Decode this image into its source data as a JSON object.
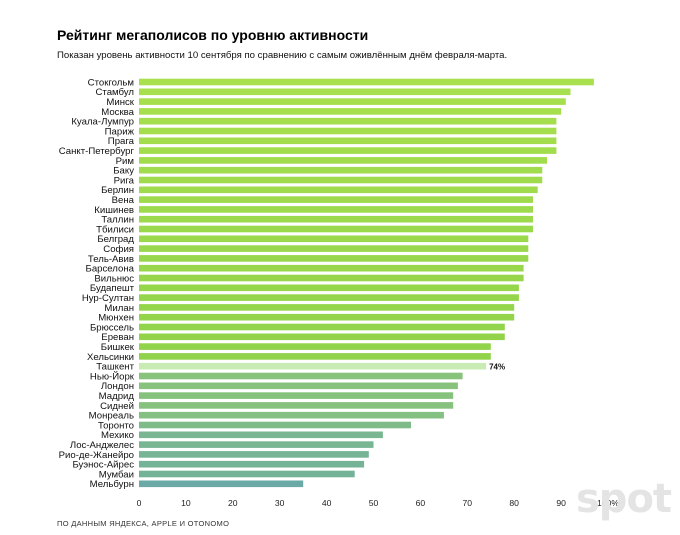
{
  "title": "Рейтинг мегаполисов по уровню активности",
  "subtitle": "Показан уровень активности 10 сентября по сравнению с самым оживлённым днём февраля-марта.",
  "source": "ПО ДАННЫМ ЯНДЕКСА, APPLE И OTONOMO",
  "watermark": "spot",
  "colors": {
    "green": "#a8e04e",
    "highlight": "#c9ecb5",
    "teal": "#6aa9a6"
  },
  "chart_data": {
    "type": "bar",
    "orientation": "horizontal",
    "title": "Рейтинг мегаполисов по уровню активности",
    "xlim": [
      0,
      100
    ],
    "ticks": [
      "0",
      "10",
      "20",
      "30",
      "40",
      "50",
      "60",
      "70",
      "80",
      "90",
      "100%"
    ],
    "highlight": {
      "category": "Ташкент",
      "label": "74%"
    },
    "categories": [
      "Стокгольм",
      "Стамбул",
      "Минск",
      "Москва",
      "Куала-Лумпур",
      "Париж",
      "Прага",
      "Санкт-Петербург",
      "Рим",
      "Баку",
      "Рига",
      "Берлин",
      "Вена",
      "Кишинев",
      "Таллин",
      "Тбилиси",
      "Белград",
      "София",
      "Тель-Авив",
      "Барселона",
      "Вильнюс",
      "Будапешт",
      "Нур-Султан",
      "Милан",
      "Мюнхен",
      "Брюссель",
      "Ереван",
      "Бишкек",
      "Хельсинки",
      "Ташкент",
      "Нью-Йорк",
      "Лондон",
      "Мадрид",
      "Сидней",
      "Монреаль",
      "Торонто",
      "Мехико",
      "Лос-Анджелес",
      "Рио-де-Жанейро",
      "Буэнос-Айрес",
      "Мумбаи",
      "Мельбурн"
    ],
    "values": [
      97,
      92,
      91,
      90,
      89,
      89,
      89,
      89,
      87,
      86,
      86,
      85,
      84,
      84,
      84,
      84,
      83,
      83,
      83,
      82,
      82,
      81,
      81,
      80,
      80,
      78,
      78,
      75,
      75,
      74,
      69,
      68,
      67,
      67,
      65,
      58,
      52,
      50,
      49,
      48,
      46,
      35
    ]
  }
}
